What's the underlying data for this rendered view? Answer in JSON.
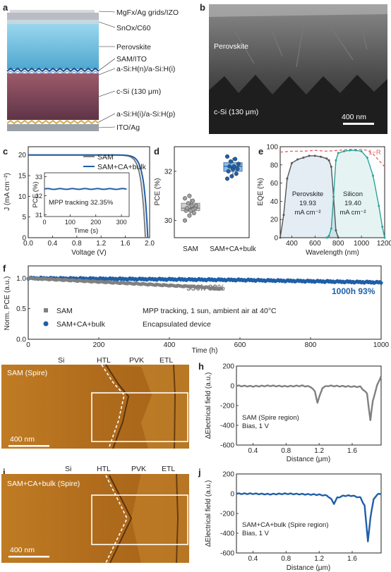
{
  "panels": {
    "a": {
      "letter": "a",
      "layers": [
        "MgFx/Ag grids/IZO",
        "SnOx/C60",
        "Perovskite",
        "SAM/ITO",
        "a-Si:H(n)/a-Si:H(i)",
        "c-Si (130 μm)",
        "a-Si:H(i)/a-Si:H(p)",
        "ITO/Ag"
      ]
    },
    "b": {
      "letter": "b",
      "label_top": "Perovskite",
      "label_bottom": "c-Si (130 μm)",
      "scalebar": "400 nm"
    },
    "c": {
      "letter": "c",
      "xlabel": "Voltage (V)",
      "ylabel": "J (mA cm⁻²)",
      "xticks": [
        "0.0",
        "0.4",
        "0.8",
        "1.2",
        "1.6",
        "2.0"
      ],
      "yticks": [
        "0",
        "5",
        "10",
        "15",
        "20"
      ],
      "legend": [
        "SAM",
        "SAM+CA+bulk"
      ],
      "inset": {
        "xlabel": "Time (s)",
        "ylabel": "PCE (%)",
        "xticks": [
          "0",
          "100",
          "200",
          "300"
        ],
        "yticks": [
          "31",
          "32",
          "33"
        ],
        "note": "MPP tracking 32.35%"
      }
    },
    "d": {
      "letter": "d",
      "ylabel": "PCE (%)",
      "yticks": [
        "30",
        "32"
      ],
      "categories": [
        "SAM",
        "SAM+CA+bulk"
      ]
    },
    "e": {
      "letter": "e",
      "xlabel": "Wavelength (nm)",
      "ylabel": "EQE (%)",
      "xticks": [
        "400",
        "600",
        "800",
        "1000",
        "1200"
      ],
      "yticks": [
        "0",
        "20",
        "40",
        "60",
        "80",
        "100"
      ],
      "curve_label": "1−R",
      "perovskite": {
        "name": "Perovskite",
        "value": "19.93",
        "unit": "mA cm⁻²"
      },
      "silicon": {
        "name": "Silicon",
        "value": "19.40",
        "unit": "mA cm⁻²"
      }
    },
    "f": {
      "letter": "f",
      "xlabel": "Time (h)",
      "ylabel": "Norm. PCE (a.u.)",
      "xticks": [
        "0",
        "200",
        "400",
        "600",
        "800",
        "1000"
      ],
      "yticks": [
        "0.0",
        "0.5",
        "1.0"
      ],
      "annot_gray": "550h 82%",
      "annot_blue": "1000h 93%",
      "legend": [
        "SAM",
        "SAM+CA+bulk"
      ],
      "conditions": [
        "MPP tracking, 1 sun, ambient air at 40°C",
        "Encapsulated device"
      ]
    },
    "g": {
      "letter": "g",
      "title": "SAM (Spire)",
      "regions": [
        "Si",
        "HTL",
        "PVK",
        "ETL"
      ],
      "scalebar": "400 nm"
    },
    "h": {
      "letter": "h",
      "xlabel": "Distance (μm)",
      "ylabel": "ΔElectrical field (a.u.)",
      "xticks": [
        "0.4",
        "0.8",
        "1.2",
        "1.6"
      ],
      "yticks": [
        "200",
        "0",
        "-200",
        "-400",
        "-600"
      ],
      "note1": "SAM (Spire region)",
      "note2": "Bias, 1 V"
    },
    "i": {
      "letter": "i",
      "title": "SAM+CA+bulk (Spire)",
      "regions": [
        "Si",
        "HTL",
        "PVK",
        "ETL"
      ],
      "scalebar": "400 nm"
    },
    "j": {
      "letter": "j",
      "xlabel": "Distance (μm)",
      "ylabel": "ΔElectrical field (a.u.)",
      "xticks": [
        "0.4",
        "0.8",
        "1.2",
        "1.6"
      ],
      "yticks": [
        "200",
        "0",
        "-200",
        "-400",
        "-600"
      ],
      "note1": "SAM+CA+bulk (Spire region)",
      "note2": "Bias, 1 V"
    }
  },
  "colors": {
    "gray": "#808080",
    "blue": "#1f5fa8",
    "teal": "#2aa39a",
    "red": "#e06060",
    "afm": "#b8731f"
  },
  "chart_data": [
    {
      "panel": "c",
      "type": "line",
      "xlim": [
        0,
        2.0
      ],
      "ylim": [
        0,
        22
      ],
      "series": [
        {
          "name": "SAM",
          "voc": 1.93,
          "jsc": 20.0
        },
        {
          "name": "SAM+CA+bulk",
          "voc": 1.97,
          "jsc": 20.0
        }
      ],
      "inset": {
        "type": "line",
        "xlim": [
          0,
          330
        ],
        "ylim": [
          30.9,
          33.2
        ],
        "series": [
          {
            "name": "SAM+CA+bulk",
            "x": [
              0,
              320
            ],
            "y": [
              32.35,
              32.35
            ]
          }
        ]
      }
    },
    {
      "panel": "d",
      "type": "scatter",
      "ylim": [
        29.3,
        33.0
      ],
      "series": [
        {
          "name": "SAM",
          "values": [
            30.0,
            30.2,
            30.3,
            30.4,
            30.4,
            30.5,
            30.5,
            30.6,
            30.6,
            30.7,
            30.8,
            30.9,
            31.0
          ],
          "box": [
            30.2,
            30.4,
            30.5,
            30.7,
            30.9
          ]
        },
        {
          "name": "SAM+CA+bulk",
          "values": [
            31.7,
            31.8,
            31.9,
            32.0,
            32.1,
            32.1,
            32.2,
            32.2,
            32.3,
            32.4,
            32.5,
            32.6
          ],
          "box": [
            31.8,
            32.0,
            32.2,
            32.35,
            32.55
          ]
        }
      ]
    },
    {
      "panel": "e",
      "type": "line",
      "xlim": [
        300,
        1200
      ],
      "ylim": [
        0,
        100
      ],
      "series": [
        {
          "name": "Perovskite",
          "x": [
            300,
            330,
            360,
            400,
            450,
            500,
            550,
            600,
            650,
            700,
            720,
            740,
            760,
            780,
            800
          ],
          "y": [
            0,
            25,
            65,
            82,
            86,
            88,
            90,
            90,
            89,
            87,
            85,
            78,
            45,
            8,
            0
          ]
        },
        {
          "name": "Silicon",
          "x": [
            700,
            720,
            740,
            760,
            780,
            800,
            850,
            900,
            950,
            1000,
            1050,
            1100,
            1150,
            1180,
            1200
          ],
          "y": [
            0,
            2,
            10,
            45,
            85,
            93,
            95,
            96,
            96,
            95,
            88,
            68,
            35,
            12,
            0
          ]
        },
        {
          "name": "1−R",
          "x": [
            300,
            400,
            500,
            600,
            700,
            800,
            900,
            1000,
            1050,
            1100,
            1150,
            1200
          ],
          "y": [
            94,
            95,
            95,
            96,
            95,
            96,
            97,
            97,
            96,
            92,
            85,
            78
          ]
        }
      ]
    },
    {
      "panel": "f",
      "type": "scatter",
      "xlim": [
        0,
        1000
      ],
      "ylim": [
        0,
        1.2
      ],
      "series": [
        {
          "name": "SAM",
          "x": [
            0,
            100,
            200,
            300,
            400,
            500,
            550
          ],
          "y": [
            1.0,
            0.97,
            0.94,
            0.91,
            0.88,
            0.85,
            0.82
          ]
        },
        {
          "name": "SAM+CA+bulk",
          "x": [
            0,
            200,
            400,
            600,
            800,
            1000
          ],
          "y": [
            1.0,
            0.99,
            0.98,
            0.97,
            0.95,
            0.93
          ]
        }
      ]
    },
    {
      "panel": "h",
      "type": "line",
      "xlim": [
        0.2,
        1.95
      ],
      "ylim": [
        -600,
        200
      ],
      "series": [
        {
          "name": "SAM (Spire region)",
          "x": [
            0.2,
            0.4,
            0.6,
            0.8,
            1.0,
            1.1,
            1.15,
            1.18,
            1.2,
            1.24,
            1.3,
            1.5,
            1.7,
            1.78,
            1.82,
            1.85,
            1.9,
            1.95
          ],
          "y": [
            0,
            -5,
            0,
            -5,
            0,
            -10,
            -60,
            -170,
            -120,
            -20,
            0,
            -5,
            -10,
            -80,
            -350,
            -150,
            0,
            100
          ]
        }
      ]
    },
    {
      "panel": "j",
      "type": "line",
      "xlim": [
        0.2,
        1.95
      ],
      "ylim": [
        -600,
        200
      ],
      "series": [
        {
          "name": "SAM+CA+bulk (Spire region)",
          "x": [
            0.2,
            0.4,
            0.6,
            0.8,
            1.0,
            1.2,
            1.3,
            1.35,
            1.38,
            1.42,
            1.5,
            1.6,
            1.7,
            1.75,
            1.79,
            1.82,
            1.86,
            1.92
          ],
          "y": [
            0,
            0,
            -5,
            0,
            -5,
            -10,
            -20,
            -60,
            -100,
            -40,
            -20,
            -20,
            -40,
            -120,
            -480,
            -250,
            -50,
            0
          ]
        }
      ]
    }
  ]
}
